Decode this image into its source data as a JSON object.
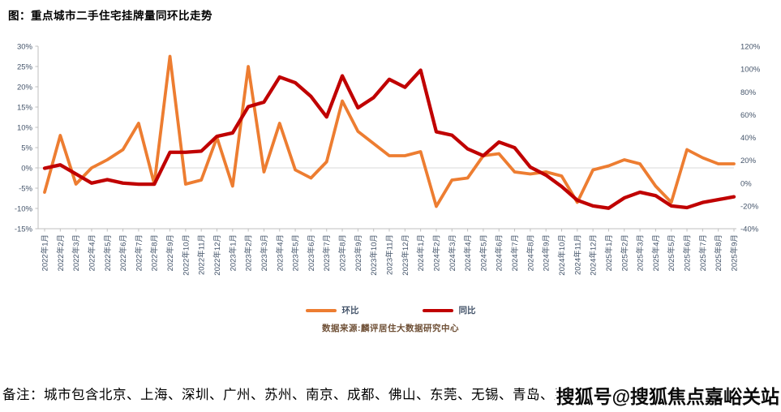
{
  "title": "图：重点城市二手住宅挂牌量同环比走势",
  "legend": [
    {
      "label": "环比",
      "color": "#ED7D31"
    },
    {
      "label": "同比",
      "color": "#C00000"
    }
  ],
  "source": "数据来源:麟评居住大数据研究中心",
  "note": "备注：城市包含北京、上海、深圳、广州、苏州、南京、成都、佛山、东莞、无锡、青岛、厦",
  "watermark": "搜狐号@搜狐焦点嘉峪关站",
  "colors": {
    "mom_line": "#ED7D31",
    "yoy_line": "#C00000",
    "axis_line": "#BFBFBF",
    "zero_gridline": "#D9D9D9",
    "tick_label": "#44546A"
  },
  "chart_data": {
    "type": "line",
    "title": "图：重点城市二手住宅挂牌量同环比走势",
    "grid": "zero-line-only",
    "legend_position": "bottom",
    "categories": [
      "2022年1月",
      "2022年2月",
      "2022年3月",
      "2022年4月",
      "2022年5月",
      "2022年6月",
      "2022年7月",
      "2022年8月",
      "2022年9月",
      "2022年10月",
      "2022年11月",
      "2022年12月",
      "2023年1月",
      "2023年2月",
      "2023年3月",
      "2023年4月",
      "2023年5月",
      "2023年6月",
      "2023年7月",
      "2023年8月",
      "2023年9月",
      "2023年10月",
      "2023年11月",
      "2023年12月",
      "2024年1月",
      "2024年2月",
      "2024年3月",
      "2024年4月",
      "2024年5月",
      "2024年6月",
      "2024年7月",
      "2024年8月",
      "2024年9月",
      "2024年10月",
      "2024年11月",
      "2024年12月",
      "2025年1月",
      "2025年2月",
      "2025年3月",
      "2025年4月",
      "2025年5月",
      "2025年6月",
      "2025年7月",
      "2025年8月",
      "2025年9月"
    ],
    "series": [
      {
        "name": "环比",
        "axis": "left",
        "color": "#ED7D31",
        "values": [
          -6,
          8,
          -4,
          0,
          2,
          4.5,
          11,
          -4,
          27.5,
          -4,
          -3,
          7.5,
          -4.5,
          25,
          -1,
          11,
          -0.5,
          -2.5,
          1.5,
          16.5,
          9,
          6,
          3,
          3,
          4,
          -9.5,
          -3,
          -2.5,
          3,
          3.5,
          -1,
          -1.5,
          -1,
          -2,
          -8.5,
          -0.5,
          0.5,
          2,
          1,
          -4.5,
          -8.5,
          4.5,
          2.5,
          1,
          1
        ]
      },
      {
        "name": "同比",
        "axis": "right",
        "color": "#C00000",
        "values": [
          13,
          16,
          8,
          0,
          3,
          0,
          -1,
          -1,
          27,
          27,
          28,
          41,
          44,
          67,
          71,
          93,
          88,
          76,
          58,
          94,
          66,
          75,
          91,
          84,
          99,
          45,
          42,
          30,
          24,
          36,
          31,
          14,
          7,
          -3,
          -15,
          -20,
          -22,
          -13,
          -8,
          -11,
          -20,
          -21.5,
          -17,
          -14.5,
          -12
        ]
      }
    ],
    "left_axis": {
      "min": -15,
      "max": 30,
      "step": 5,
      "ticks": [
        "30%",
        "25%",
        "20%",
        "15%",
        "10%",
        "5%",
        "0%",
        "-5%",
        "-10%",
        "-15%"
      ]
    },
    "right_axis": {
      "min": -40,
      "max": 120,
      "step": 20,
      "ticks": [
        "120%",
        "100%",
        "80%",
        "60%",
        "40%",
        "20%",
        "0%",
        "-20%",
        "-40%"
      ]
    }
  }
}
